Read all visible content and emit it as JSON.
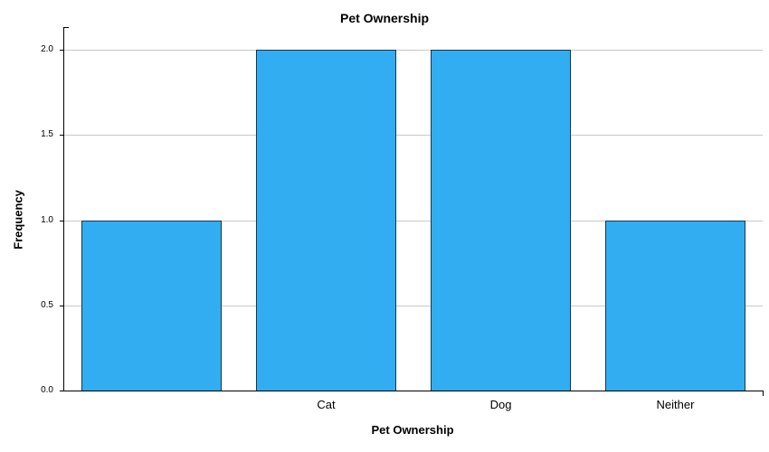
{
  "chart_data": {
    "type": "bar",
    "title": "Pet Ownership",
    "xlabel": "Pet Ownership",
    "ylabel": "Frequency",
    "categories": [
      "",
      "Cat",
      "Dog",
      "Neither"
    ],
    "values": [
      1,
      2,
      2,
      1
    ],
    "ylim": [
      0,
      2
    ],
    "yticks": [
      0,
      0.5,
      1,
      1.5,
      2
    ],
    "ytick_labels": [
      "0.0",
      "0.5",
      "1.0",
      "1.5",
      "2.0"
    ],
    "grid": true,
    "legend": "none",
    "bar_color": "#33ADF2",
    "bar_border_color": "#14374F",
    "gridline_color": "#c8c8c8",
    "axis_color": "#000000",
    "background_color": "#ffffff"
  }
}
